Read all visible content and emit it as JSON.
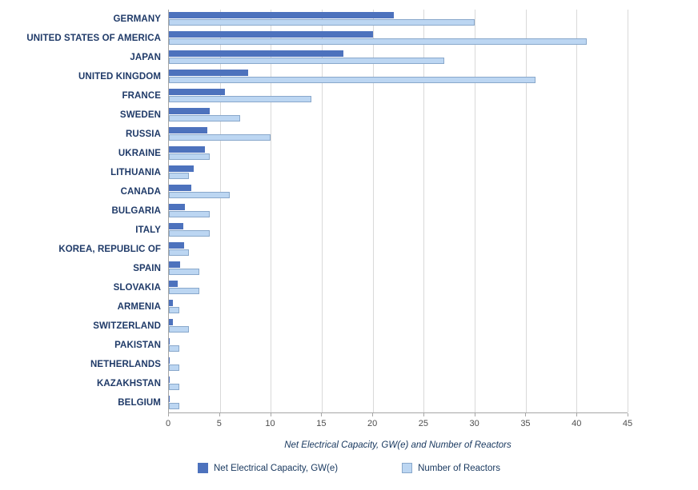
{
  "chart_data": {
    "type": "bar",
    "orientation": "horizontal",
    "title": "",
    "xlabel": "Net Electrical Capacity, GW(e) and Number of Reactors",
    "ylabel": "",
    "xlim": [
      0,
      45
    ],
    "xticks": [
      0,
      5,
      10,
      15,
      20,
      25,
      30,
      35,
      40,
      45
    ],
    "grid": true,
    "legend_position": "bottom",
    "categories": [
      "GERMANY",
      "UNITED STATES OF AMERICA",
      "JAPAN",
      "UNITED KINGDOM",
      "FRANCE",
      "SWEDEN",
      "RUSSIA",
      "UKRAINE",
      "LITHUANIA",
      "CANADA",
      "BULGARIA",
      "ITALY",
      "KOREA, REPUBLIC OF",
      "SPAIN",
      "SLOVAKIA",
      "ARMENIA",
      "SWITZERLAND",
      "PAKISTAN",
      "NETHERLANDS",
      "KAZAKHSTAN",
      "BELGIUM"
    ],
    "series": [
      {
        "name": "Net Electrical Capacity, GW(e)",
        "color": "#4d72bd",
        "border": "#4d72bd",
        "values": [
          22.1,
          20.0,
          17.1,
          7.8,
          5.5,
          4.0,
          3.8,
          3.5,
          2.4,
          2.2,
          1.6,
          1.4,
          1.5,
          1.1,
          0.9,
          0.4,
          0.4,
          0.1,
          0.06,
          0.05,
          0.02
        ]
      },
      {
        "name": "Number of Reactors",
        "color": "#bcd6f2",
        "border": "#89a8cb",
        "values": [
          30,
          41,
          27,
          36,
          14,
          7,
          10,
          4,
          2,
          6,
          4,
          4,
          2,
          3,
          3,
          1,
          2,
          1,
          1,
          1,
          1
        ]
      }
    ]
  },
  "colors": {
    "category_label": "#1f3a68",
    "tick_label": "#4d4d4d",
    "axis_title": "#17375e",
    "legend_label": "#17375e",
    "gridline": "#d9d9d9",
    "axis_line": "#a6a6a6",
    "background": "#ffffff"
  }
}
